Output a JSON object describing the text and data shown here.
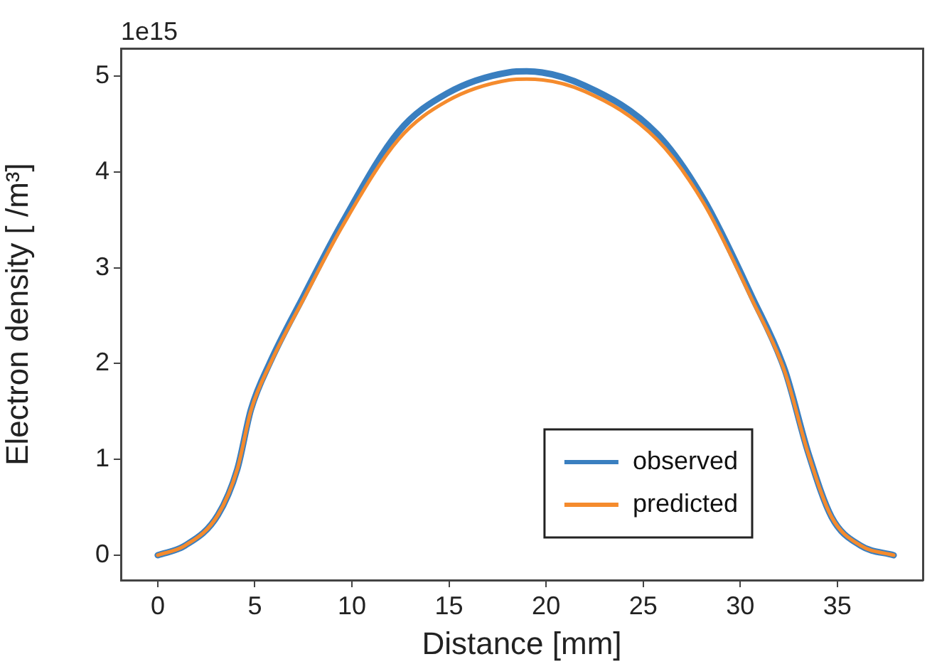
{
  "chart_data": {
    "type": "line",
    "xlabel": "Distance [mm]",
    "ylabel": "Electron density [ /m³]",
    "annotations": [
      "1e15"
    ],
    "x": [
      0,
      1.4,
      3.1,
      4.1,
      4.8,
      5.8,
      7.5,
      9.5,
      12.4,
      14.9,
      18.1,
      19,
      22,
      25.7,
      28.1,
      30.6,
      32.3,
      33.5,
      34.7,
      36.2,
      37.9
    ],
    "series": [
      {
        "name": "observed",
        "color": "#3a7fc0",
        "values": [
          0,
          0.1,
          0.42,
          0.9,
          1.52,
          2.02,
          2.7,
          3.47,
          4.42,
          4.82,
          5.04,
          5.05,
          4.9,
          4.4,
          3.72,
          2.7,
          1.93,
          1.07,
          0.4,
          0.1,
          0
        ]
      },
      {
        "name": "predicted",
        "color": "#f58b2d",
        "values": [
          0,
          0.1,
          0.42,
          0.9,
          1.51,
          2.0,
          2.67,
          3.43,
          4.34,
          4.74,
          4.96,
          4.97,
          4.84,
          4.34,
          3.68,
          2.67,
          1.91,
          1.06,
          0.4,
          0.1,
          0
        ]
      }
    ],
    "xlim": [
      -1.9,
      39.4
    ],
    "ylim": [
      -0.26,
      5.29
    ],
    "xticks": [
      0,
      5,
      10,
      15,
      20,
      25,
      30,
      35
    ],
    "yticks": [
      0,
      1,
      2,
      3,
      4,
      5
    ],
    "grid": false,
    "legend": "bottom right",
    "marker": "none",
    "line_style": "solid"
  }
}
